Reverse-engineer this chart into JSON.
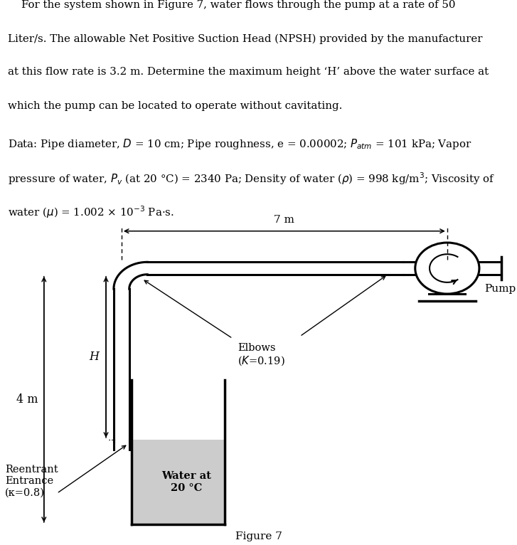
{
  "figure_caption": "Figure 7",
  "label_7m": "7 m",
  "label_4m": "4 m",
  "label_H": "H",
  "label_pump": "Pump",
  "label_elbows_line1": "Elbows",
  "label_elbows_line2": "( κ =0.19)",
  "label_reentrant_line1": "Reentrant",
  "label_reentrant_line2": "Entrance",
  "label_reentrant_line3": "(κ=0.8)",
  "label_water_line1": "Water at",
  "label_water_line2": "20 °C",
  "bg_color": "#ffffff",
  "water_color": "#cccccc",
  "line_color": "#000000",
  "text_color": "#000000",
  "title_lines": [
    "    For the system shown in Figure 7, water flows through the pump at a rate of 50",
    "Liter/s. The allowable Net Positive Suction Head (NPSH) provided by the manufacturer",
    "at this flow rate is 3.2 m. Determine the maximum height ‘H’ above the water surface at",
    "which the pump can be located to operate without cavitating."
  ],
  "data_line1": "Data: Pipe diameter, $D$ = 10 cm; Pipe roughness, e = 0.00002; $P_{atm}$ = 101 kPa; Vapor",
  "data_line2": "pressure of water, $P_v$ (at 20 °C) = 2340 Pa; Density of water ($\\rho$) = 998 kg/m$^3$; Viscosity of",
  "data_line3": "water ($\\mu$) = 1.002 × 10$^{-3}$ Pa·s."
}
